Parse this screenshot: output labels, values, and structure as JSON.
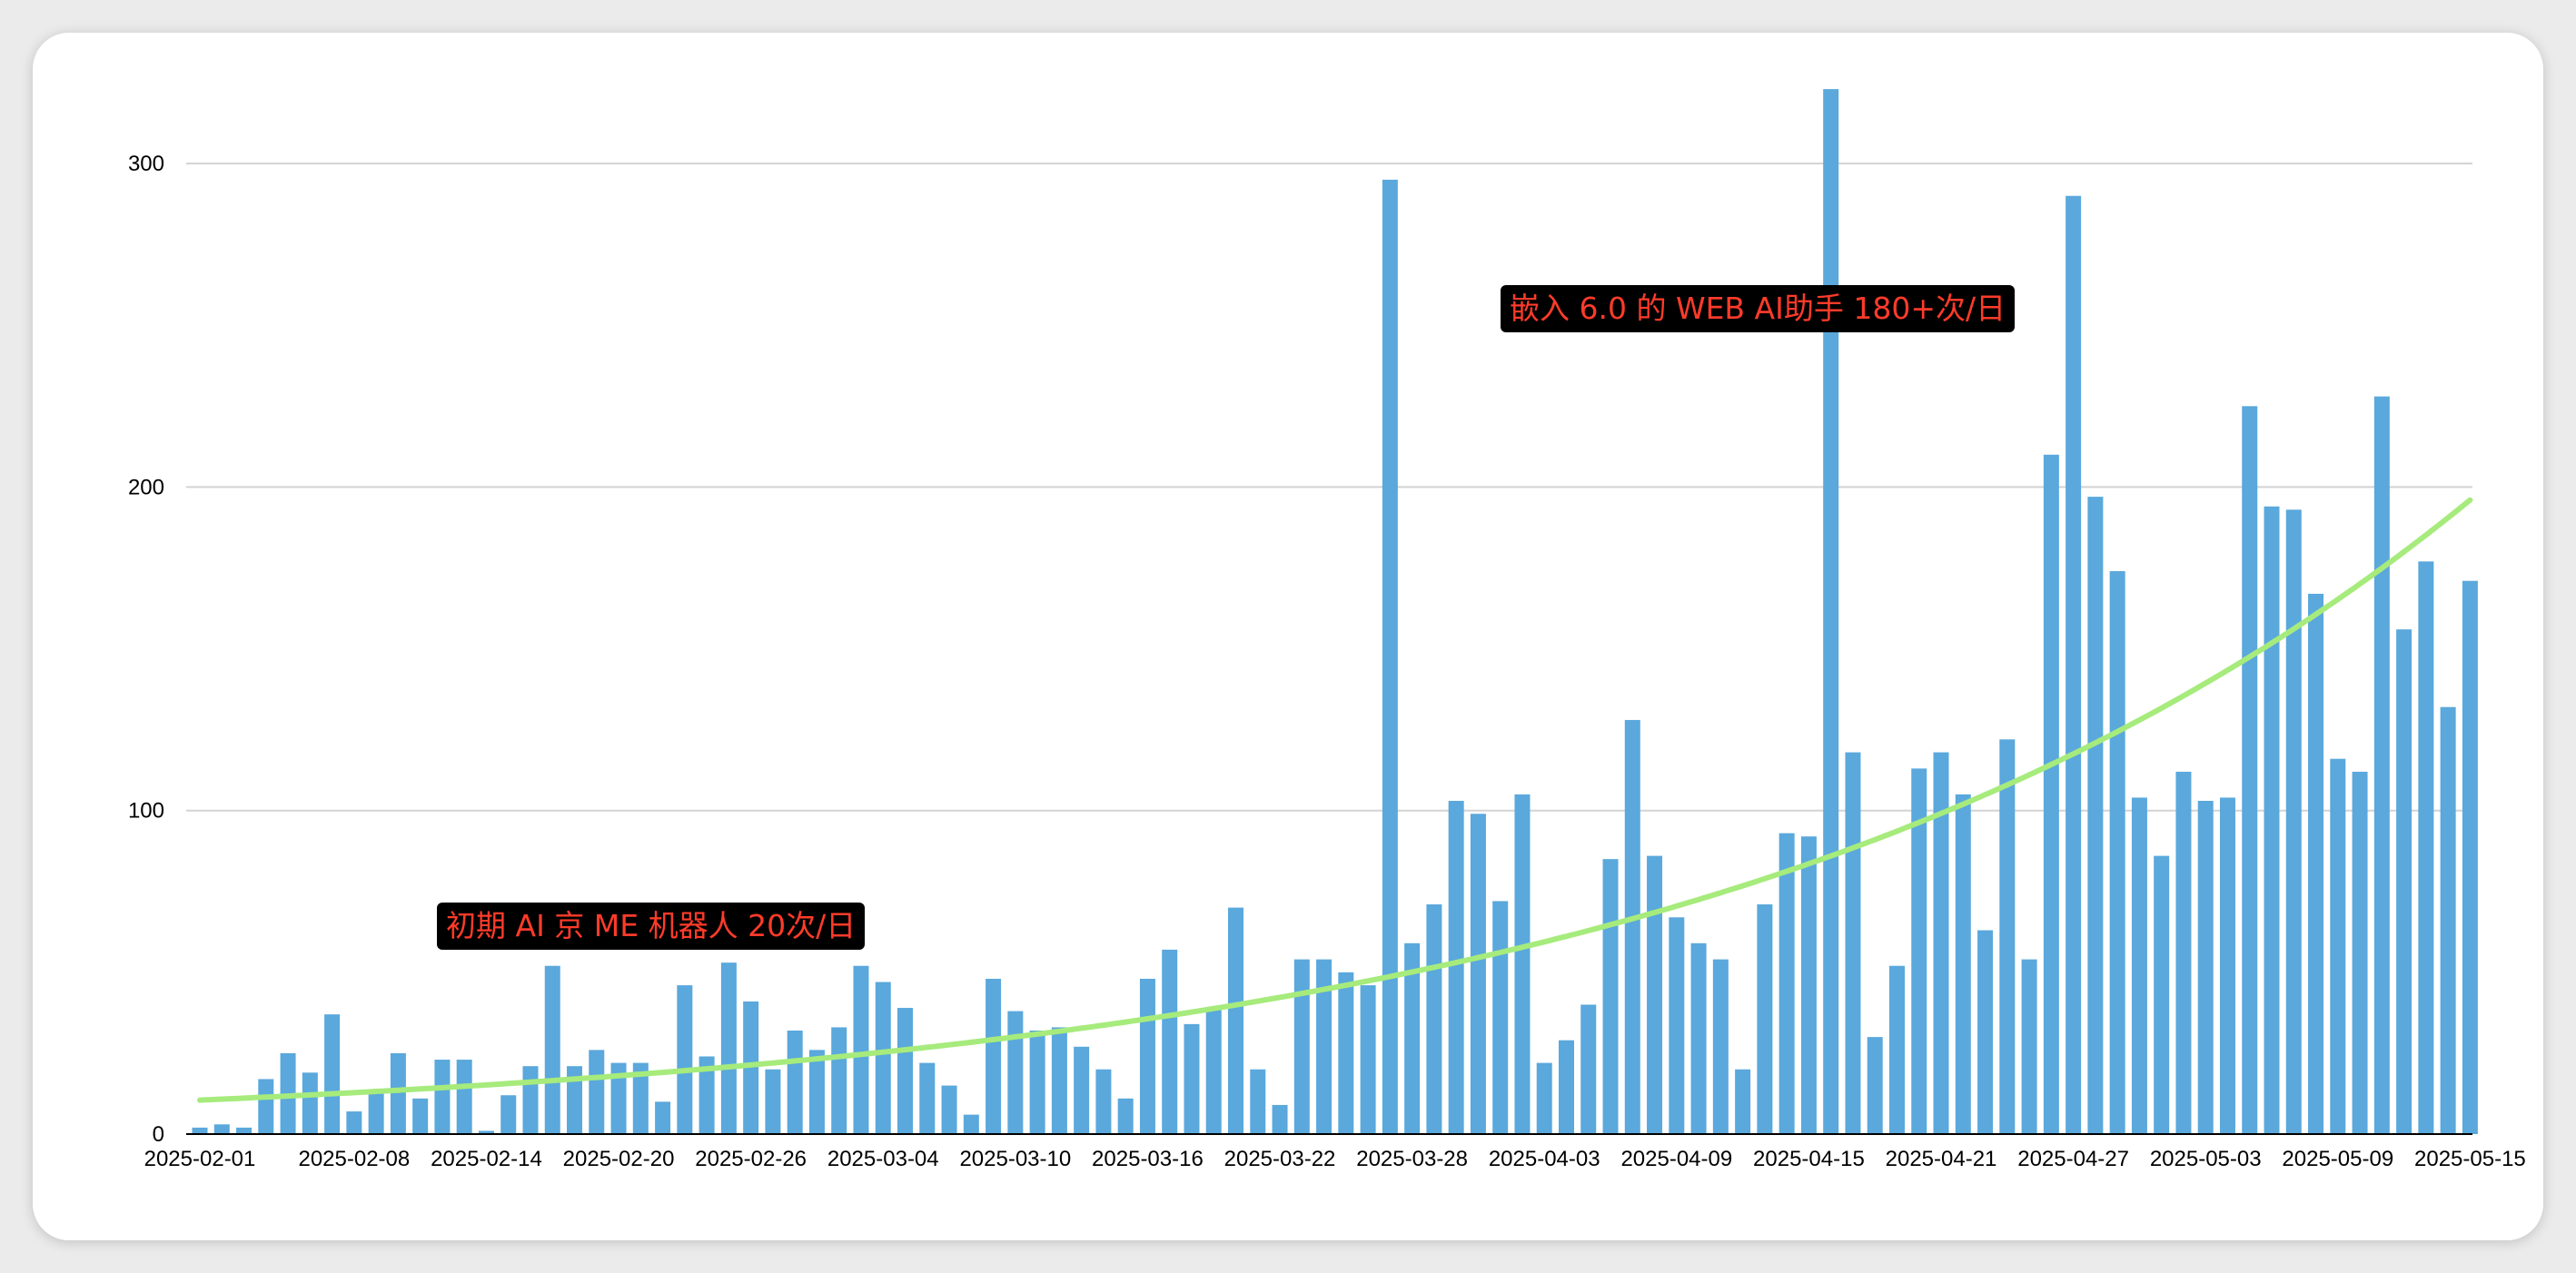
{
  "chart_data": {
    "type": "bar",
    "title": "",
    "xlabel": "",
    "ylabel": "",
    "ylim": [
      0,
      325
    ],
    "yticks": [
      0,
      100,
      200,
      300
    ],
    "grid": true,
    "x_tick_labels": [
      "2025-02-01",
      "2025-02-08",
      "2025-02-14",
      "2025-02-20",
      "2025-02-26",
      "2025-03-04",
      "2025-03-10",
      "2025-03-16",
      "2025-03-22",
      "2025-03-28",
      "2025-04-03",
      "2025-04-09",
      "2025-04-15",
      "2025-04-21",
      "2025-04-27",
      "2025-05-03",
      "2025-05-09",
      "2025-05-15"
    ],
    "categories": [
      "2025-02-01",
      "2025-02-02",
      "2025-02-03",
      "2025-02-04",
      "2025-02-05",
      "2025-02-06",
      "2025-02-07",
      "2025-02-08",
      "2025-02-09",
      "2025-02-10",
      "2025-02-11",
      "2025-02-12",
      "2025-02-13",
      "2025-02-14",
      "2025-02-15",
      "2025-02-16",
      "2025-02-17",
      "2025-02-18",
      "2025-02-19",
      "2025-02-20",
      "2025-02-21",
      "2025-02-22",
      "2025-02-23",
      "2025-02-24",
      "2025-02-25",
      "2025-02-26",
      "2025-02-27",
      "2025-02-28",
      "2025-03-01",
      "2025-03-02",
      "2025-03-03",
      "2025-03-04",
      "2025-03-05",
      "2025-03-06",
      "2025-03-07",
      "2025-03-08",
      "2025-03-09",
      "2025-03-10",
      "2025-03-11",
      "2025-03-12",
      "2025-03-13",
      "2025-03-14",
      "2025-03-15",
      "2025-03-16",
      "2025-03-17",
      "2025-03-18",
      "2025-03-19",
      "2025-03-20",
      "2025-03-21",
      "2025-03-22",
      "2025-03-23",
      "2025-03-24",
      "2025-03-25",
      "2025-03-26",
      "2025-03-27",
      "2025-03-28",
      "2025-03-29",
      "2025-03-30",
      "2025-03-31",
      "2025-04-01",
      "2025-04-02",
      "2025-04-03",
      "2025-04-04",
      "2025-04-05",
      "2025-04-06",
      "2025-04-07",
      "2025-04-08",
      "2025-04-09",
      "2025-04-10",
      "2025-04-11",
      "2025-04-12",
      "2025-04-13",
      "2025-04-14",
      "2025-04-15",
      "2025-04-16",
      "2025-04-17",
      "2025-04-18",
      "2025-04-19",
      "2025-04-20",
      "2025-04-21",
      "2025-04-22",
      "2025-04-23",
      "2025-04-24",
      "2025-04-25",
      "2025-04-26",
      "2025-04-27",
      "2025-04-28",
      "2025-04-29",
      "2025-04-30",
      "2025-05-01",
      "2025-05-02",
      "2025-05-03",
      "2025-05-04",
      "2025-05-05",
      "2025-05-06",
      "2025-05-07",
      "2025-05-08",
      "2025-05-09",
      "2025-05-10",
      "2025-05-11",
      "2025-05-12",
      "2025-05-13",
      "2025-05-14",
      "2025-05-15"
    ],
    "values": [
      2,
      3,
      2,
      17,
      25,
      19,
      37,
      7,
      13,
      25,
      11,
      23,
      23,
      1,
      12,
      21,
      52,
      21,
      26,
      22,
      22,
      10,
      46,
      24,
      53,
      41,
      20,
      32,
      26,
      33,
      52,
      47,
      39,
      22,
      15,
      6,
      48,
      38,
      32,
      33,
      27,
      20,
      11,
      48,
      57,
      34,
      39,
      70,
      20,
      9,
      54,
      54,
      50,
      46,
      295,
      59,
      71,
      103,
      99,
      72,
      105,
      22,
      29,
      40,
      85,
      128,
      86,
      67,
      59,
      54,
      20,
      71,
      93,
      92,
      323,
      118,
      30,
      52,
      113,
      118,
      105,
      63,
      122,
      54,
      210,
      290,
      197,
      174,
      104,
      86,
      112,
      103,
      104,
      225,
      194,
      193,
      167,
      116,
      112,
      228,
      156,
      177,
      132,
      171
    ],
    "trend": {
      "type": "exponential",
      "start": 10.5,
      "end": 196
    },
    "colors": {
      "bar": "#5aa8dc",
      "trend": "#a6eb7c",
      "grid": "#d3d3d3",
      "axis": "#000000"
    },
    "annotations": [
      {
        "text": "初期 AI 京 ME 机器人  20次/日",
        "color": "#ff3b2a",
        "background": "#000000"
      },
      {
        "text": "嵌入 6.0 的 WEB AI助手 180+次/日",
        "color": "#ff3b2a",
        "background": "#000000"
      }
    ]
  }
}
